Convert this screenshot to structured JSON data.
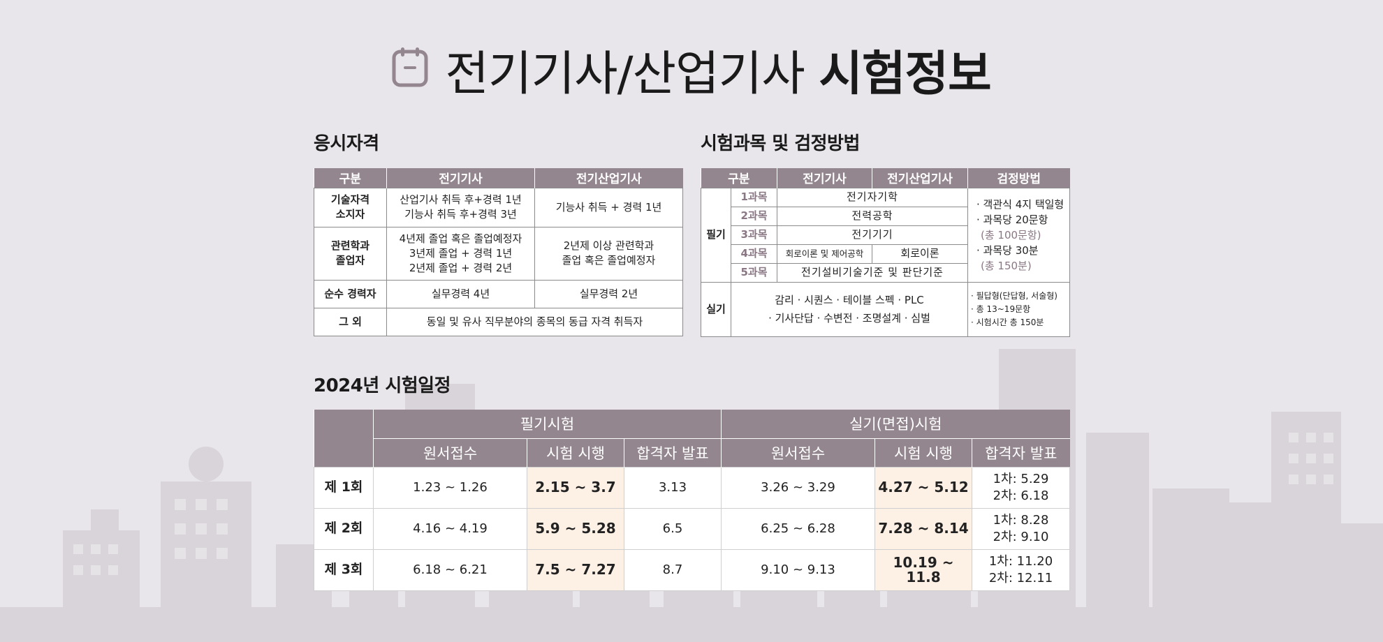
{
  "title": {
    "light": "전기기사/산업기사",
    "bold": "시험정보",
    "icon": "calendar-icon"
  },
  "eligibility": {
    "heading": "응시자격",
    "columns": [
      "구분",
      "전기기사",
      "전기산업기사"
    ],
    "rows": [
      {
        "label": "기술자격\n소지자",
        "engineer": "산업기사 취득 후+경력 1년\n기능사 취득 후+경력 3년",
        "industrial": "기능사 취득 + 경력 1년"
      },
      {
        "label": "관련학과\n졸업자",
        "engineer": "4년제 졸업 혹은 졸업예정자\n3년제 졸업 + 경력 1년\n2년제 졸업 + 경력 2년",
        "industrial": "2년제 이상 관련학과\n졸업 혹은 졸업예정자"
      },
      {
        "label": "순수 경력자",
        "engineer": "실무경력 4년",
        "industrial": "실무경력 2년"
      },
      {
        "label": "그   외",
        "merged": "동일 및 유사 직무분야의 종목의 동급 자격 취득자"
      }
    ]
  },
  "subjects": {
    "heading": "시험과목 및 검정방법",
    "columns": [
      "구분",
      "전기기사",
      "전기산업기사",
      "검정방법"
    ],
    "written_label": "필기",
    "written": [
      {
        "no": "1과목",
        "name": "전기자기학"
      },
      {
        "no": "2과목",
        "name": "전력공학"
      },
      {
        "no": "3과목",
        "name": "전기기기"
      },
      {
        "no": "4과목",
        "engineer": "회로이론 및 제어공학",
        "industrial": "회로이론"
      },
      {
        "no": "5과목",
        "name": "전기설비기술기준 및 판단기준"
      }
    ],
    "written_method": [
      {
        "text": "· 객관식 4지 택일형",
        "note": ""
      },
      {
        "text": "· 과목당 20문항",
        "note": "(총 100문항)"
      },
      {
        "text": "· 과목당 30분",
        "note": "(총 150분)"
      }
    ],
    "practical_label": "실기",
    "practical_content": "감리 · 시퀀스 · 테이블 스펙 · PLC\n· 기사단답 · 수변전 · 조명설계 · 심벌",
    "practical_method": [
      "· 필답형(단답형, 서술형)",
      "· 총 13~19문항",
      "· 시험시간 총 150분"
    ]
  },
  "schedule": {
    "heading": "2024년 시험일정",
    "group_written": "필기시험",
    "group_practical": "실기(면접)시험",
    "sub_columns": [
      "원서접수",
      "시험 시행",
      "합격자 발표",
      "원서접수",
      "시험 시행",
      "합격자 발표"
    ],
    "rows": [
      {
        "round": "제 1회",
        "w_apply": "1.23 ~ 1.26",
        "w_exam": "2.15 ~ 3.7",
        "w_result": "3.13",
        "p_apply": "3.26 ~ 3.29",
        "p_exam": "4.27 ~ 5.12",
        "p_result": "1차: 5.29\n2차: 6.18"
      },
      {
        "round": "제 2회",
        "w_apply": "4.16 ~ 4.19",
        "w_exam": "5.9 ~ 5.28",
        "w_result": "6.5",
        "p_apply": "6.25 ~ 6.28",
        "p_exam": "7.28 ~ 8.14",
        "p_result": "1차: 8.28\n2차: 9.10"
      },
      {
        "round": "제 3회",
        "w_apply": "6.18 ~ 6.21",
        "w_exam": "7.5 ~ 7.27",
        "w_result": "8.7",
        "p_apply": "9.10 ~ 9.13",
        "p_exam": "10.19 ~ 11.8",
        "p_result": "1차: 11.20\n2차: 12.11"
      }
    ]
  },
  "colors": {
    "background": "#e8e6ea",
    "header": "#93868f",
    "accent_text": "#8a7784",
    "exam_highlight": "#fdf0e4",
    "skyline": "#d6d2d7"
  }
}
